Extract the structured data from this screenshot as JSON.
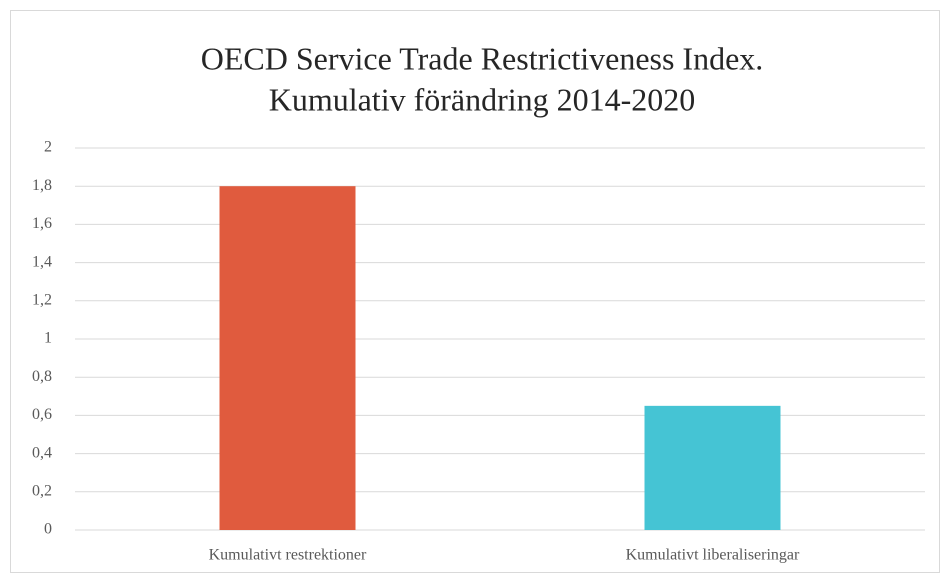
{
  "chart_data": {
    "type": "bar",
    "title": [
      "OECD Service Trade Restrictiveness Index.",
      "Kumulativ förändring 2014-2020"
    ],
    "categories": [
      "Kumulativt restrektioner",
      "Kumulativt liberaliseringar"
    ],
    "values": [
      1.8,
      0.65
    ],
    "colors": [
      "#e05b3e",
      "#45c4d4"
    ],
    "ylim": [
      0,
      2
    ],
    "yticks": [
      0,
      {
        "value": 0.2,
        "label": "0,2"
      },
      {
        "value": 0.4,
        "label": "0,4"
      },
      {
        "value": 0.6,
        "label": "0,6"
      },
      {
        "value": 0.8,
        "label": "0,8"
      },
      1,
      {
        "value": 1.2,
        "label": "1,2"
      },
      {
        "value": 1.4,
        "label": "1,4"
      },
      {
        "value": 1.6,
        "label": "1,6"
      },
      {
        "value": 1.8,
        "label": "1,8"
      },
      2
    ],
    "grid": true
  }
}
